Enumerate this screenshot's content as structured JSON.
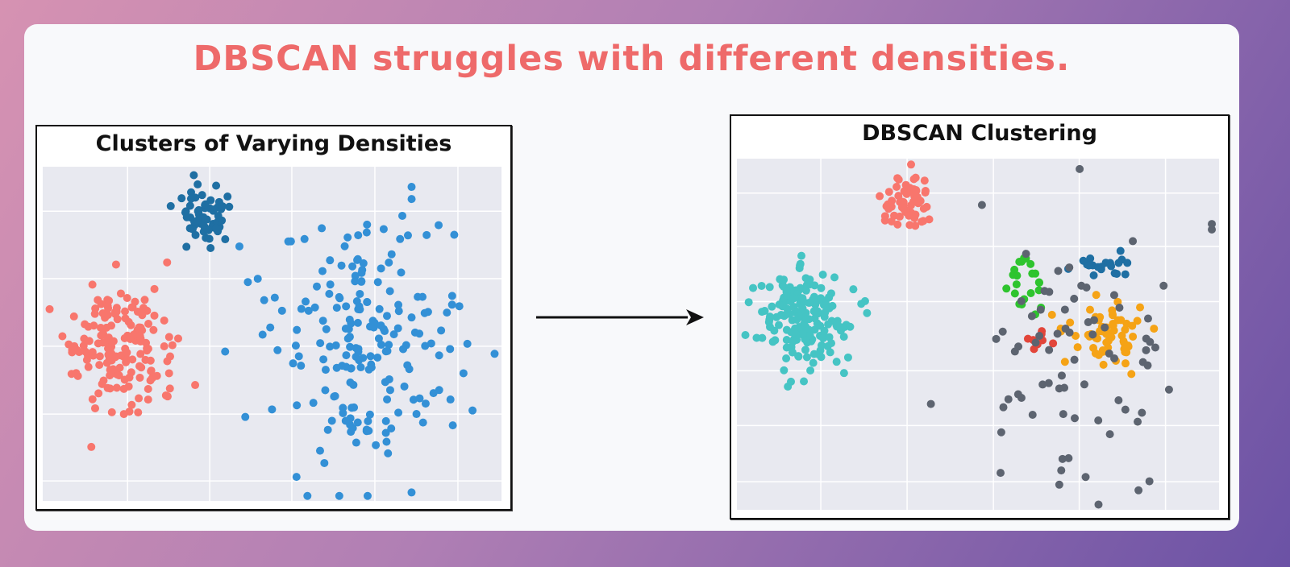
{
  "headline": "DBSCAN struggles with different densities.",
  "colors": {
    "headline": "#ee6a6a",
    "plot_bg": "#e8e9f0",
    "grid": "#ffffff",
    "salmon": "#f8766d",
    "dark_blue": "#1f6fa3",
    "light_blue": "#3390d6",
    "teal": "#45c4c4",
    "noise_gray": "#5d6470",
    "green": "#2ec42e",
    "orange": "#f5a316",
    "red": "#e2453a"
  },
  "arrow": {
    "label": "right-arrow"
  },
  "chart_data": [
    {
      "type": "scatter",
      "title": "Clusters of Varying Densities",
      "xlabel": "",
      "ylabel": "",
      "grid": true,
      "legend": "none",
      "xlim": [
        0,
        100
      ],
      "ylim": [
        0,
        100
      ],
      "grid_x": [
        18.5,
        36.4,
        54.3,
        72.4,
        90.5
      ],
      "grid_y": [
        6,
        26,
        46.3,
        66.5,
        86.7
      ],
      "series": [
        {
          "name": "dense small cluster",
          "color": "#1f6fa3",
          "center": [
            36,
            85
          ],
          "spread": [
            2.6,
            4.5
          ],
          "count": 60
        },
        {
          "name": "medium cluster",
          "color": "#f8766d",
          "center": [
            17,
            46
          ],
          "spread": [
            5.5,
            9
          ],
          "count": 170
        },
        {
          "name": "sparse large cluster",
          "color": "#3390d6",
          "center": [
            70,
            47
          ],
          "spread": [
            10,
            18
          ],
          "count": 200
        }
      ]
    },
    {
      "type": "scatter",
      "title": "DBSCAN Clustering",
      "xlabel": "",
      "ylabel": "",
      "grid": true,
      "legend": "none",
      "xlim": [
        0,
        100
      ],
      "ylim": [
        0,
        100
      ],
      "grid_x": [
        17.4,
        35.3,
        53.2,
        71,
        88.9
      ],
      "grid_y": [
        8,
        24,
        39.6,
        59.3,
        75,
        90.2
      ],
      "series": [
        {
          "name": "Cluster (salmon)",
          "color": "#f8766d",
          "center": [
            35.5,
            87
          ],
          "spread": [
            2.6,
            4
          ],
          "count": 60
        },
        {
          "name": "Cluster (teal)",
          "color": "#45c4c4",
          "center": [
            14,
            55
          ],
          "spread": [
            4.5,
            7
          ],
          "count": 170
        },
        {
          "name": "Cluster (green)",
          "color": "#2ec42e",
          "center": [
            59.5,
            64
          ],
          "spread": [
            2,
            4
          ],
          "count": 22
        },
        {
          "name": "Cluster (dark blue)",
          "color": "#1f6fa3",
          "center": [
            77,
            70
          ],
          "spread": [
            3,
            3
          ],
          "count": 20
        },
        {
          "name": "Cluster (orange)",
          "color": "#f5a316",
          "center": [
            76.5,
            51
          ],
          "spread": [
            4.5,
            5.5
          ],
          "count": 60
        },
        {
          "name": "Cluster (red)",
          "color": "#e2453a",
          "center": [
            62,
            49
          ],
          "spread": [
            1.3,
            1.5
          ],
          "count": 8
        },
        {
          "name": "Noise",
          "color": "#5d6470",
          "center": [
            68,
            45
          ],
          "spread": [
            13,
            20
          ],
          "count": 75
        }
      ]
    }
  ]
}
